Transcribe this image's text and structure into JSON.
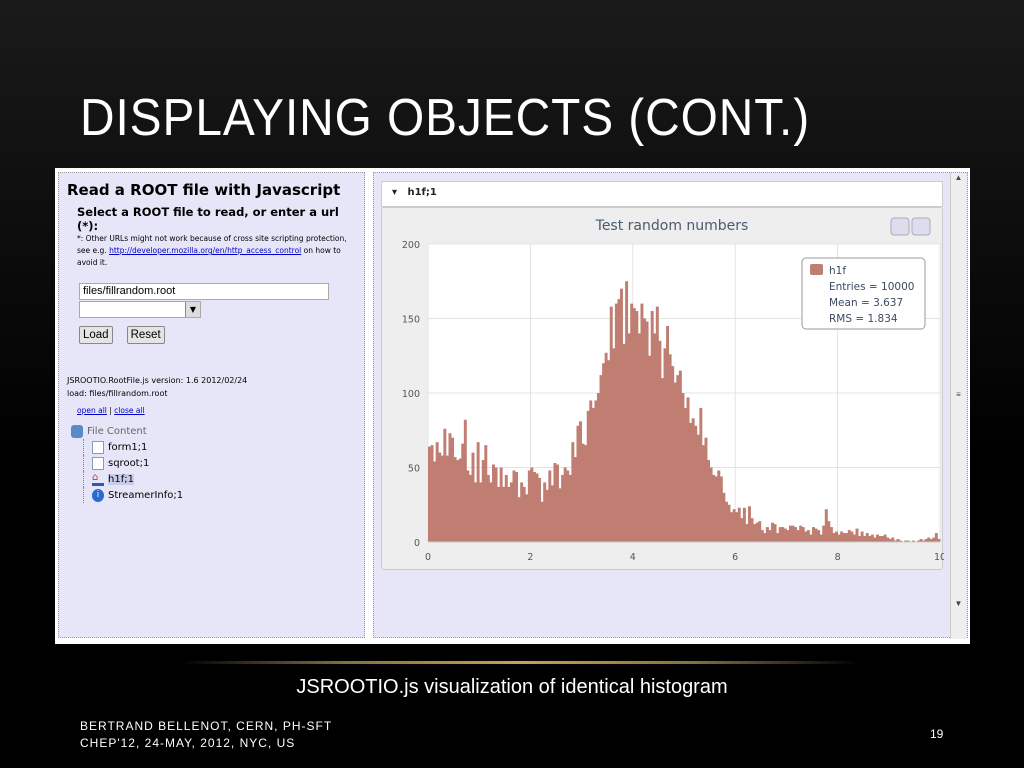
{
  "slide": {
    "title": "DISPLAYING OBJECTS (CONT.)",
    "caption": "JSROOTIO.js visualization of identical histogram",
    "footer_line1": "BERTRAND BELLENOT, CERN, PH-SFT",
    "footer_line2": "CHEP'12, 24-MAY, 2012, NYC, US",
    "page_number": "19"
  },
  "left": {
    "heading": "Read a ROOT file with Javascript",
    "subheading": "Select a ROOT file to read, or enter a url (*):",
    "note_pre": "*: Other URLs might not work because of cross site scripting protection, see e.g. ",
    "note_link": "http://developer.mozilla.org/en/http_access_control",
    "note_post": " on how to avoid it.",
    "url_value": "files/fillrandom.root",
    "load_label": "Load",
    "reset_label": "Reset",
    "version": "JSROOTIO.RootFile.js version: 1.6 2012/02/24",
    "load_status": "load: files/fillrandom.root",
    "open_all": "open all",
    "sep": " | ",
    "close_all": "close all",
    "tree_root": "File Content",
    "tree_items": [
      "form1;1",
      "sqroot;1",
      "h1f;1",
      "StreamerInfo;1"
    ]
  },
  "right": {
    "header": "h1f;1",
    "scroll_mid": "≡"
  },
  "chart_data": {
    "type": "bar",
    "title": "Test random numbers",
    "xlim": [
      0,
      10
    ],
    "ylim": [
      0,
      200
    ],
    "xticks": [
      "0",
      "2",
      "4",
      "6",
      "8",
      "10"
    ],
    "yticks": [
      "0",
      "50",
      "100",
      "150",
      "200"
    ],
    "legend": {
      "name": "h1f",
      "entries": "Entries = 10000",
      "mean": "Mean = 3.637",
      "rms": "RMS = 1.834",
      "placement": "top-right"
    },
    "color": "#c07e72",
    "bin_width": 0.05,
    "values": [
      64,
      65,
      54,
      67,
      60,
      58,
      76,
      58,
      73,
      70,
      57,
      55,
      56,
      66,
      82,
      48,
      45,
      60,
      40,
      67,
      40,
      55,
      65,
      45,
      40,
      52,
      50,
      37,
      50,
      37,
      45,
      37,
      40,
      48,
      47,
      30,
      40,
      37,
      32,
      48,
      50,
      47,
      46,
      43,
      27,
      40,
      35,
      48,
      38,
      53,
      52,
      36,
      45,
      50,
      48,
      45,
      67,
      57,
      78,
      81,
      66,
      65,
      88,
      95,
      90,
      95,
      100,
      112,
      120,
      127,
      122,
      158,
      130,
      160,
      163,
      170,
      133,
      175,
      140,
      160,
      157,
      155,
      140,
      160,
      150,
      148,
      125,
      155,
      140,
      158,
      135,
      110,
      130,
      145,
      126,
      118,
      107,
      112,
      115,
      100,
      90,
      97,
      80,
      83,
      78,
      72,
      90,
      65,
      70,
      55,
      50,
      45,
      44,
      48,
      44,
      33,
      27,
      25,
      20,
      22,
      20,
      23,
      16,
      23,
      12,
      24,
      16,
      12,
      13,
      14,
      8,
      6,
      10,
      8,
      13,
      12,
      6,
      10,
      10,
      9,
      8,
      11,
      11,
      10,
      8,
      11,
      10,
      7,
      8,
      5,
      10,
      9,
      8,
      5,
      11,
      22,
      14,
      10,
      6,
      7,
      5,
      7,
      6,
      6,
      8,
      7,
      5,
      9,
      4,
      7,
      4,
      6,
      4,
      5,
      3,
      5,
      4,
      4,
      5,
      3,
      2,
      3,
      1,
      2,
      1,
      0,
      1,
      1,
      0,
      1,
      0,
      1,
      2,
      1,
      2,
      3,
      2,
      3,
      6,
      2
    ]
  }
}
